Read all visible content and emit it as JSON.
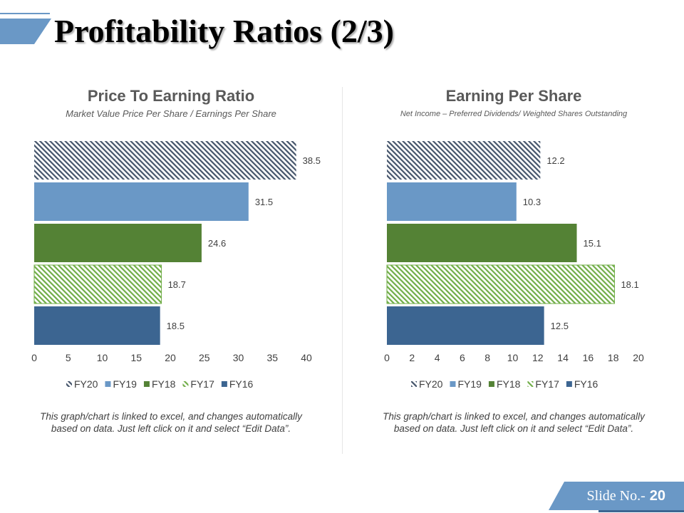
{
  "title": "Profitability Ratios (2/3)",
  "colors": {
    "accent": "#6A98C6",
    "FY20": "#44546A",
    "FY19": "#6A98C6",
    "FY18": "#548235",
    "FY17": "#70AD47",
    "FY16": "#3C6591"
  },
  "chart_data": [
    {
      "type": "bar",
      "orientation": "horizontal",
      "title": "Price To Earning Ratio",
      "subtitle": "Market Value Price Per Share / Earnings Per Share",
      "categories": [
        "FY20",
        "FY19",
        "FY18",
        "FY17",
        "FY16"
      ],
      "values": [
        38.5,
        31.5,
        24.6,
        18.7,
        18.5
      ],
      "value_labels": [
        "38.5",
        "31.5",
        "24.6",
        "18.7",
        "18.5"
      ],
      "xlim": [
        0,
        40
      ],
      "ticks": [
        "0",
        "5",
        "10",
        "15",
        "20",
        "25",
        "30",
        "35",
        "40"
      ],
      "legend": [
        "FY20",
        "FY19",
        "FY18",
        "FY17",
        "FY16"
      ],
      "legend_position": "bottom",
      "grid": false
    },
    {
      "type": "bar",
      "orientation": "horizontal",
      "title": "Earning Per Share",
      "subtitle": "Net Income – Preferred Dividends/ Weighted Shares Outstanding",
      "categories": [
        "FY20",
        "FY19",
        "FY18",
        "FY17",
        "FY16"
      ],
      "values": [
        12.2,
        10.3,
        15.1,
        18.1,
        12.5
      ],
      "value_labels": [
        "12.2",
        "10.3",
        "15.1",
        "18.1",
        "12.5"
      ],
      "xlim": [
        0,
        20
      ],
      "ticks": [
        "0",
        "2",
        "4",
        "6",
        "8",
        "10",
        "12",
        "14",
        "16",
        "18",
        "20"
      ],
      "legend": [
        "FY20",
        "FY19",
        "FY18",
        "FY17",
        "FY16"
      ],
      "legend_position": "bottom",
      "grid": false
    }
  ],
  "note": "This graph/chart is linked to excel, and changes automatically based on data. Just left click on it and select “Edit Data”.",
  "slide": {
    "label": "Slide No.-",
    "number": "20"
  }
}
